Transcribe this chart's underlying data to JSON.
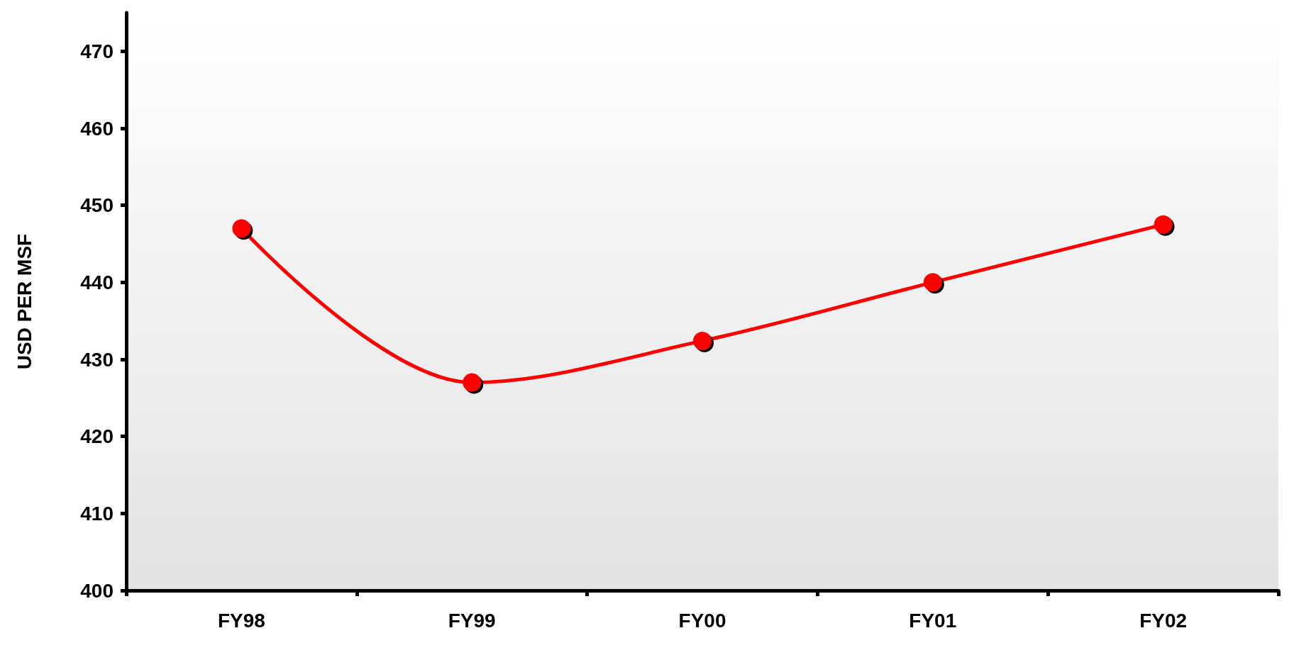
{
  "chart_data": {
    "type": "line",
    "ylabel": "USD PER MSF",
    "categories": [
      "FY98",
      "FY99",
      "FY00",
      "FY01",
      "FY02"
    ],
    "series": [
      {
        "color": "#ff0000",
        "values": [
          447,
          427,
          432.4,
          440,
          447.5
        ]
      }
    ],
    "ylim": [
      400,
      475
    ],
    "yticks": [
      400,
      410,
      420,
      430,
      440,
      450,
      460,
      470
    ],
    "grid": false,
    "marker": "circle",
    "line_style": "solid"
  }
}
